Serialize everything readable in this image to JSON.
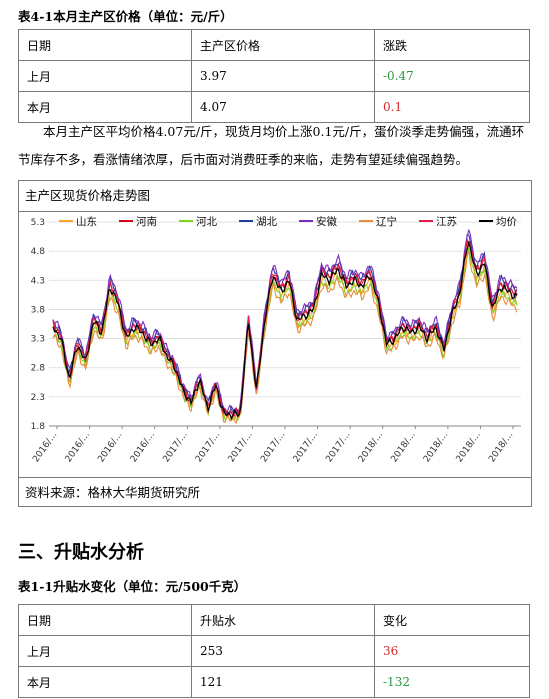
{
  "table1": {
    "caption": "表4-1本月主产区价格（单位：元/斤）",
    "headers": [
      "日期",
      "主产区价格",
      "涨跌"
    ],
    "rows": [
      [
        "上月",
        "3.97",
        "-0.47"
      ],
      [
        "本月",
        "4.07",
        "0.1"
      ]
    ]
  },
  "paragraph": "本月主产区平均价格4.07元/斤，现货月均价上涨0.1元/斤，蛋价淡季走势偏强，流通环节库存不多，看涨情绪浓厚，后市面对消费旺季的来临，走势有望延续偏强趋势。",
  "chart_box": {
    "title": "主产区现货价格走势图",
    "source": "资料来源：格林大华期货研究所"
  },
  "chart_data": {
    "type": "line",
    "ylim": [
      1.8,
      5.3
    ],
    "yticks": [
      "1.8",
      "2.3",
      "2.8",
      "3.3",
      "3.8",
      "4.3",
      "4.8",
      "5.3"
    ],
    "xticks": [
      "2016/…",
      "2016/…",
      "2016/…",
      "2016/…",
      "2017/…",
      "2017/…",
      "2017/…",
      "2017/…",
      "2017/…",
      "2017/…",
      "2018/…",
      "2018/…",
      "2018/…",
      "2018/…",
      "2018/…"
    ],
    "legend_position": "top",
    "series": [
      {
        "name": "山东",
        "color": "#f5a623",
        "offset": -0.06
      },
      {
        "name": "河南",
        "color": "#d0021b",
        "offset": 0.06
      },
      {
        "name": "河北",
        "color": "#7ed321",
        "offset": -0.1
      },
      {
        "name": "湖北",
        "color": "#1f3f9a",
        "offset": 0.1
      },
      {
        "name": "安徽",
        "color": "#7b2cbf",
        "offset": 0.14
      },
      {
        "name": "辽宁",
        "color": "#e98b3a",
        "offset": -0.16
      },
      {
        "name": "江苏",
        "color": "#e0204a",
        "offset": 0.04
      },
      {
        "name": "均价",
        "color": "#000000",
        "offset": 0.0
      }
    ],
    "base_trend": [
      3.5,
      3.3,
      2.6,
      3.2,
      2.9,
      3.6,
      3.4,
      4.2,
      3.9,
      3.3,
      3.5,
      3.4,
      3.2,
      3.3,
      3.0,
      2.8,
      2.4,
      2.2,
      2.6,
      2.1,
      2.5,
      2.0,
      2.0,
      2.0,
      3.6,
      2.4,
      3.6,
      4.4,
      4.1,
      4.3,
      3.6,
      3.7,
      3.8,
      4.4,
      4.3,
      4.5,
      4.2,
      4.3,
      4.2,
      4.4,
      3.9,
      3.2,
      3.3,
      3.5,
      3.4,
      3.5,
      3.3,
      3.5,
      3.1,
      3.7,
      4.1,
      5.0,
      4.4,
      4.6,
      3.8,
      4.2,
      4.1,
      4.0
    ]
  },
  "section_heading": "三、升贴水分析",
  "table2": {
    "caption": "表1-1升贴水变化（单位：元/500千克）",
    "headers": [
      "日期",
      "升贴水",
      "变化"
    ],
    "rows": [
      [
        "上月",
        "253",
        "36"
      ],
      [
        "本月",
        "121",
        "-132"
      ]
    ]
  }
}
